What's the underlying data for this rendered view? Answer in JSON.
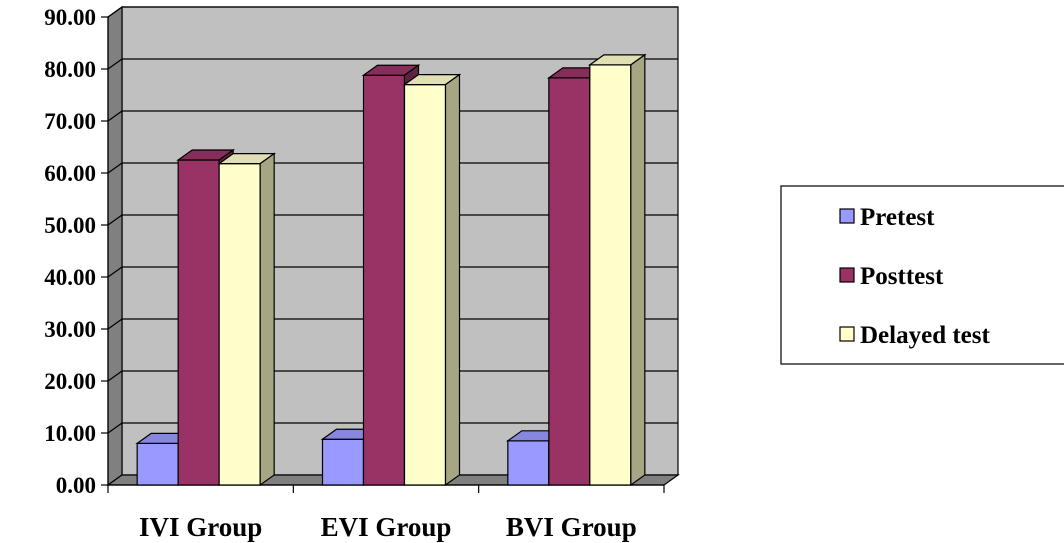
{
  "chart_data": {
    "type": "bar",
    "style": "3d-clustered-column",
    "categories": [
      "IVI Group",
      "EVI Group",
      "BVI Group"
    ],
    "series": [
      {
        "name": "Pretest",
        "values": [
          8.0,
          8.8,
          8.5
        ],
        "color": "#9999FF"
      },
      {
        "name": "Posttest",
        "values": [
          62.5,
          78.8,
          78.3
        ],
        "color": "#993366"
      },
      {
        "name": "Delayed test",
        "values": [
          61.8,
          77.0,
          80.8
        ],
        "color": "#FFFFCC"
      }
    ],
    "y_ticks": [
      "0.00",
      "10.00",
      "20.00",
      "30.00",
      "40.00",
      "50.00",
      "60.00",
      "70.00",
      "80.00",
      "90.00"
    ],
    "ylim": [
      0,
      90
    ],
    "grid": true,
    "legend_position": "right",
    "wall_color": "#C0C0C0",
    "side_wall_color": "#808080",
    "floor_color": "#808080"
  }
}
